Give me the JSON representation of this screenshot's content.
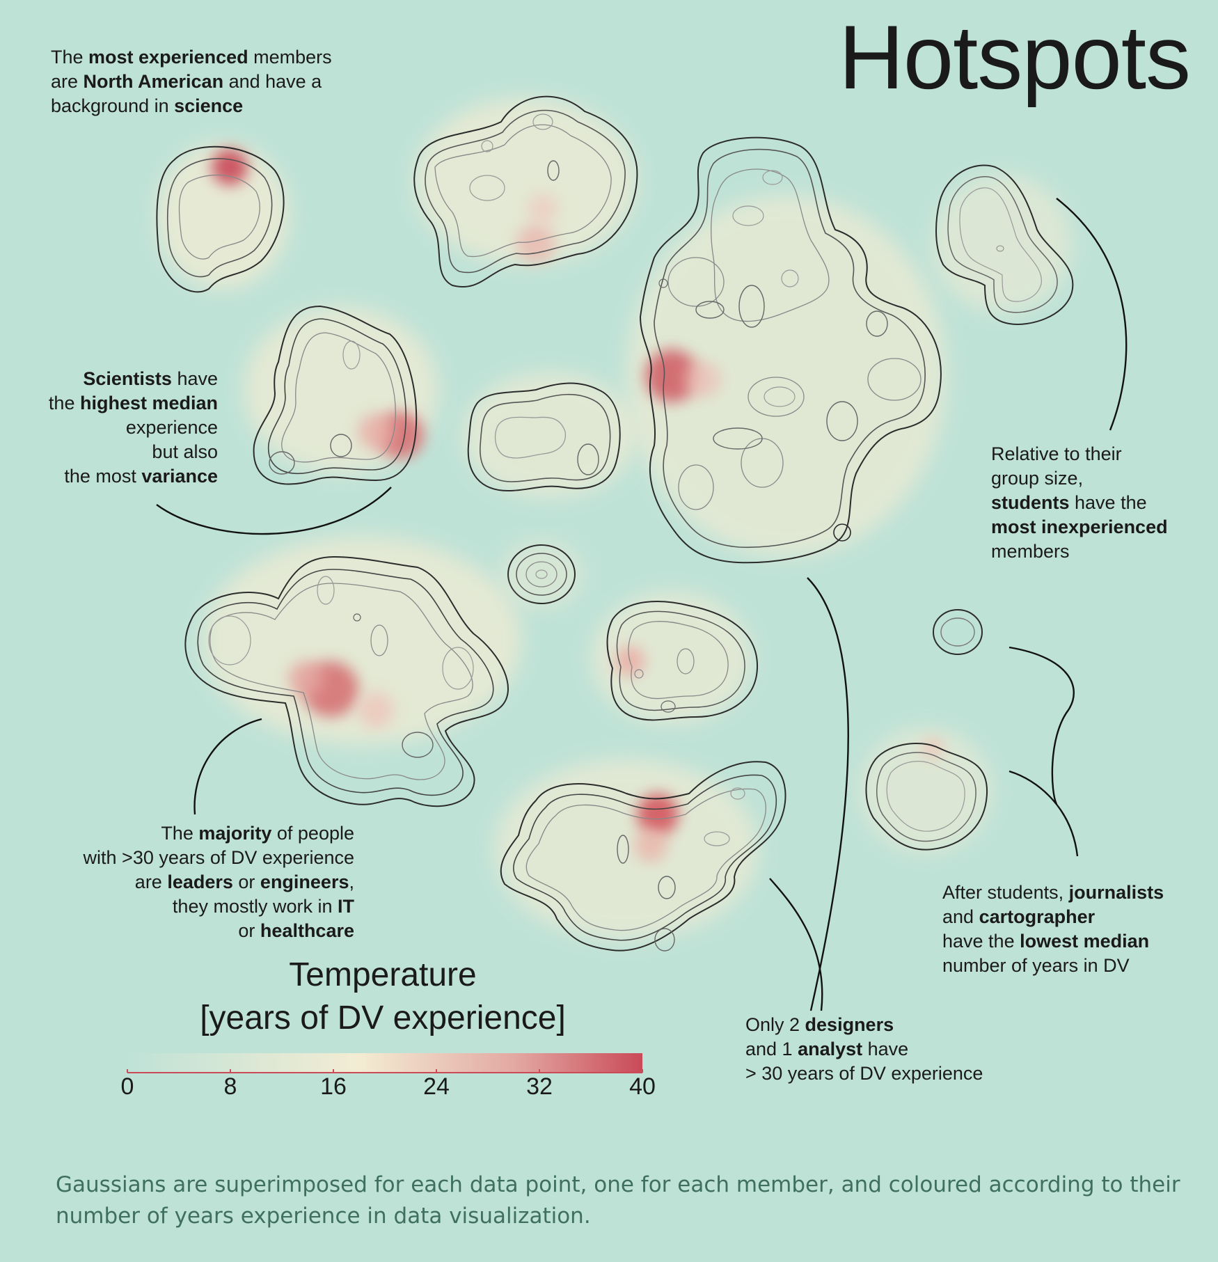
{
  "title": "Hotspots",
  "annotations": {
    "north_american": {
      "lines": [
        [
          "The ",
          "*most experienced*",
          " members"
        ],
        [
          "are ",
          "*North American*",
          " and have a"
        ],
        [
          "background in ",
          "*science*"
        ]
      ]
    },
    "scientists": {
      "lines": [
        [
          "*Scientists*",
          " have"
        ],
        [
          "the ",
          "*highest median*"
        ],
        [
          "experience"
        ],
        [
          "but also"
        ],
        [
          "the most ",
          "*variance*"
        ]
      ]
    },
    "students": {
      "lines": [
        [
          "Relative to their"
        ],
        [
          "group size,"
        ],
        [
          "*students*",
          " have the"
        ],
        [
          "*most inexperienced*"
        ],
        [
          "members"
        ]
      ]
    },
    "majority": {
      "lines": [
        [
          "The ",
          "*majority*",
          " of people"
        ],
        [
          "with >30 years of  DV experience"
        ],
        [
          "are ",
          "*leaders*",
          " or ",
          "*engineers*",
          ","
        ],
        [
          "they mostly work in ",
          "*IT*"
        ],
        [
          "or ",
          "*healthcare*"
        ]
      ]
    },
    "journalists": {
      "lines": [
        [
          "After students, ",
          "*journalists*"
        ],
        [
          "and ",
          "*cartographer*"
        ],
        [
          "have the ",
          "*lowest median*"
        ],
        [
          "number of years in DV"
        ]
      ]
    },
    "designers": {
      "lines": [
        [
          "Only 2 ",
          "*designers*"
        ],
        [
          "and 1 ",
          "*analyst*",
          " have"
        ],
        [
          "> 30 years of DV experience"
        ]
      ]
    }
  },
  "legend": {
    "title_line1": "Temperature",
    "title_line2": "[years of DV experience]",
    "ticks": [
      "0",
      "8",
      "16",
      "24",
      "32",
      "40"
    ],
    "scale_min": 0,
    "scale_max": 40,
    "colors": [
      "#bfe2d7",
      "#f3ecd3",
      "#c94a58"
    ]
  },
  "footnote": "Gaussians are superimposed for each data point, one for each member, and coloured according to their number of years experience in data visualization.",
  "colors": {
    "background": "#bfe2d7",
    "contour": "#2b2b2b",
    "warm_low": "#f3ecd3",
    "warm_high": "#c94a58",
    "footnote_text": "#3f6f5f"
  }
}
